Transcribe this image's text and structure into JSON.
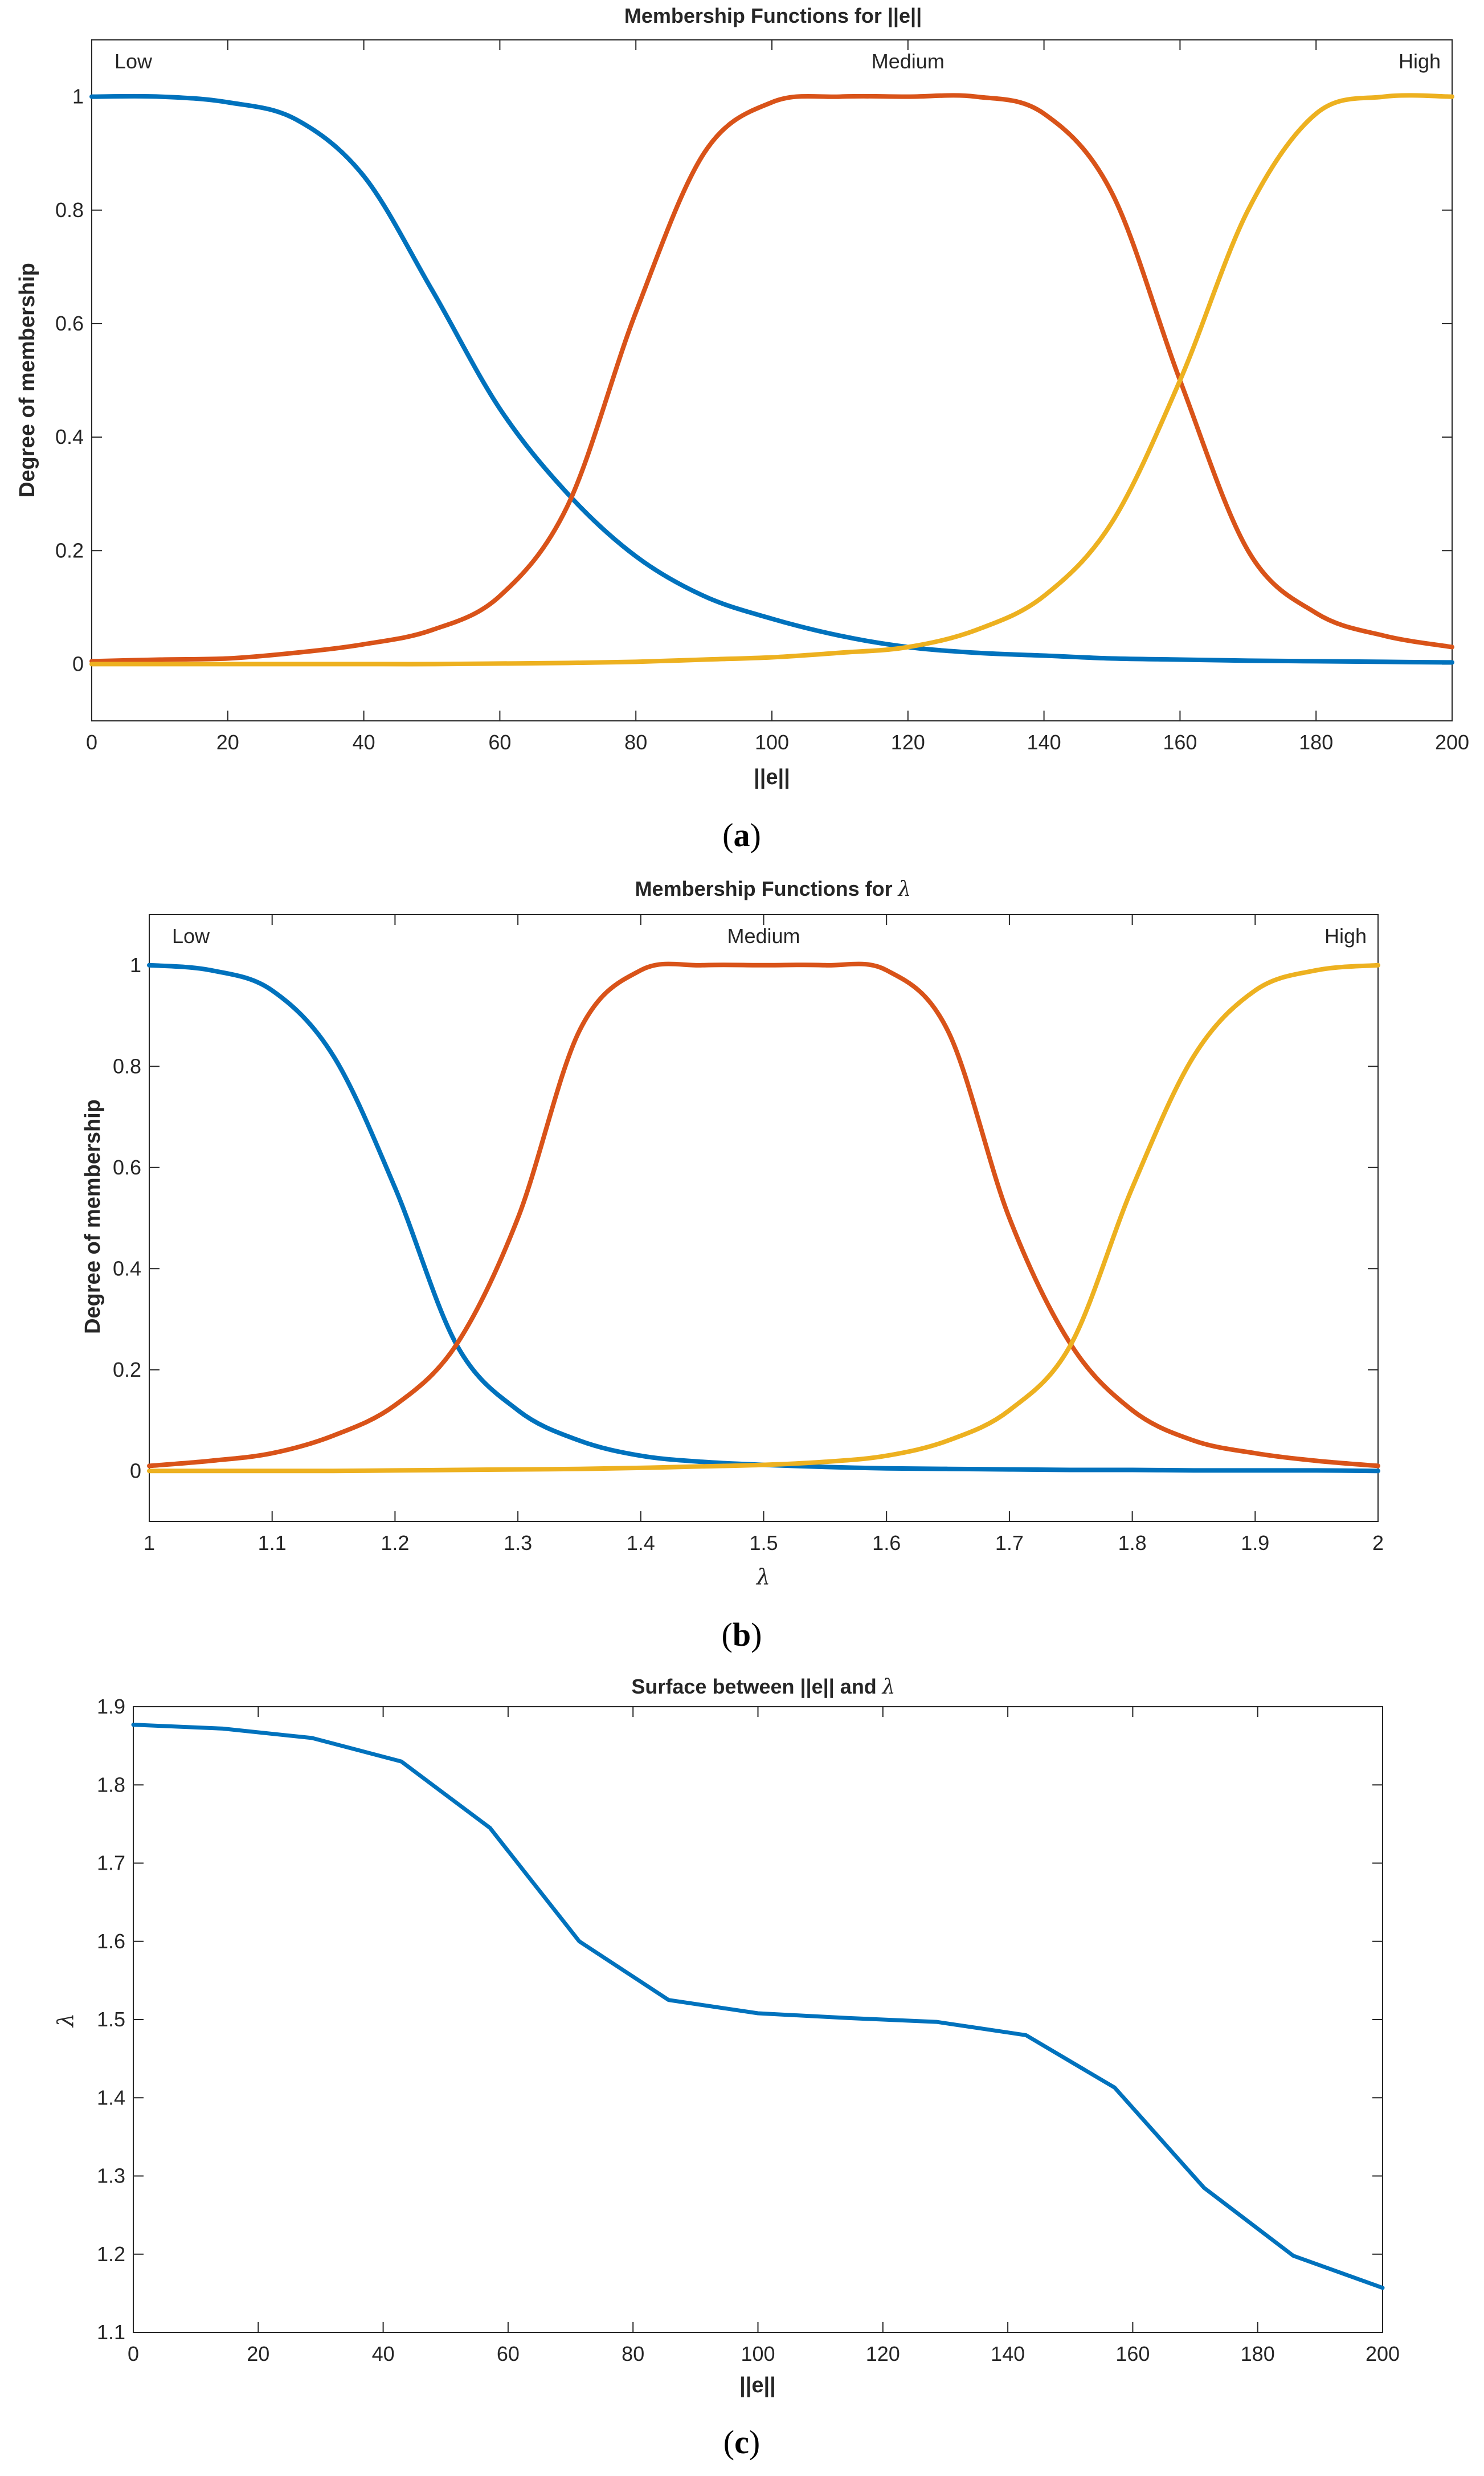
{
  "chart_data": [
    {
      "type": "line",
      "panel": "a",
      "title": "Membership Functions for ||e||",
      "xlabel": "||e||",
      "ylabel": "Degree of membership",
      "xlim": [
        0,
        200
      ],
      "ylim": [
        -0.1,
        1.1
      ],
      "xticks": [
        "0",
        "20",
        "40",
        "60",
        "80",
        "100",
        "120",
        "140",
        "160",
        "180",
        "200"
      ],
      "yticks": [
        "0",
        "0.2",
        "0.4",
        "0.6",
        "0.8",
        "1"
      ],
      "grid": false,
      "mf_labels": [
        {
          "text": "Low",
          "x": 0
        },
        {
          "text": "Medium",
          "x": 120
        },
        {
          "text": "High",
          "x": 200
        }
      ],
      "x": [
        0,
        10,
        20,
        30,
        40,
        50,
        60,
        70,
        80,
        90,
        100,
        110,
        120,
        130,
        140,
        150,
        160,
        170,
        180,
        190,
        200
      ],
      "series": [
        {
          "color": "#0072BD",
          "values": [
            1.0,
            1.0,
            0.99,
            0.96,
            0.86,
            0.66,
            0.45,
            0.3,
            0.19,
            0.12,
            0.08,
            0.05,
            0.03,
            0.02,
            0.015,
            0.01,
            0.008,
            0.006,
            0.005,
            0.004,
            0.003
          ]
        },
        {
          "color": "#D95319",
          "values": [
            0.005,
            0.008,
            0.01,
            0.02,
            0.035,
            0.06,
            0.12,
            0.28,
            0.62,
            0.9,
            0.99,
            1.0,
            1.0,
            1.0,
            0.97,
            0.83,
            0.5,
            0.2,
            0.09,
            0.05,
            0.03
          ]
        },
        {
          "color": "#EDB120",
          "values": [
            0.0,
            0.0,
            0.0,
            0.0,
            0.0,
            0.0,
            0.001,
            0.002,
            0.004,
            0.008,
            0.012,
            0.02,
            0.03,
            0.06,
            0.12,
            0.25,
            0.5,
            0.8,
            0.97,
            1.0,
            1.0
          ]
        }
      ]
    },
    {
      "type": "line",
      "panel": "b",
      "title": "Membership Functions for λ",
      "xlabel": "λ",
      "ylabel": "Degree of membership",
      "xlim": [
        1,
        2
      ],
      "ylim": [
        -0.1,
        1.1
      ],
      "xticks": [
        "1",
        "1.1",
        "1.2",
        "1.3",
        "1.4",
        "1.5",
        "1.6",
        "1.7",
        "1.8",
        "1.9",
        "2"
      ],
      "yticks": [
        "0",
        "0.2",
        "0.4",
        "0.6",
        "0.8",
        "1"
      ],
      "grid": false,
      "mf_labels": [
        {
          "text": "Low",
          "x": 1.0
        },
        {
          "text": "Medium",
          "x": 1.5
        },
        {
          "text": "High",
          "x": 2.0
        }
      ],
      "x": [
        1.0,
        1.05,
        1.1,
        1.15,
        1.2,
        1.25,
        1.3,
        1.35,
        1.4,
        1.45,
        1.5,
        1.55,
        1.6,
        1.65,
        1.7,
        1.75,
        1.8,
        1.85,
        1.9,
        1.95,
        2.0
      ],
      "series": [
        {
          "color": "#0072BD",
          "values": [
            1.0,
            0.99,
            0.95,
            0.82,
            0.56,
            0.25,
            0.12,
            0.06,
            0.03,
            0.018,
            0.012,
            0.008,
            0.005,
            0.004,
            0.003,
            0.002,
            0.002,
            0.001,
            0.001,
            0.001,
            0.0
          ]
        },
        {
          "color": "#D95319",
          "values": [
            0.01,
            0.02,
            0.035,
            0.07,
            0.13,
            0.25,
            0.5,
            0.87,
            0.99,
            1.0,
            1.0,
            1.0,
            0.99,
            0.87,
            0.5,
            0.25,
            0.12,
            0.06,
            0.035,
            0.02,
            0.01
          ]
        },
        {
          "color": "#EDB120",
          "values": [
            0.0,
            0.0,
            0.0,
            0.0,
            0.001,
            0.002,
            0.003,
            0.004,
            0.006,
            0.009,
            0.012,
            0.018,
            0.03,
            0.06,
            0.12,
            0.25,
            0.56,
            0.82,
            0.95,
            0.99,
            1.0
          ]
        }
      ]
    },
    {
      "type": "line",
      "panel": "c",
      "title": "Surface between ||e|| and λ",
      "xlabel": "||e||",
      "ylabel": "λ",
      "xlim": [
        0,
        200
      ],
      "ylim": [
        1.1,
        1.9
      ],
      "xticks": [
        "0",
        "20",
        "40",
        "60",
        "80",
        "100",
        "120",
        "140",
        "160",
        "180",
        "200"
      ],
      "yticks": [
        "1.1",
        "1.2",
        "1.3",
        "1.4",
        "1.5",
        "1.6",
        "1.7",
        "1.8",
        "1.9"
      ],
      "grid": false,
      "x": [
        0,
        14.3,
        28.6,
        42.9,
        57.1,
        71.4,
        85.7,
        100,
        114.3,
        128.6,
        142.9,
        157.1,
        171.4,
        185.7,
        200
      ],
      "series": [
        {
          "color": "#0072BD",
          "values": [
            1.877,
            1.872,
            1.86,
            1.83,
            1.745,
            1.6,
            1.525,
            1.508,
            1.502,
            1.497,
            1.48,
            1.413,
            1.285,
            1.198,
            1.157
          ]
        }
      ]
    }
  ],
  "captions": {
    "a": "(a)",
    "b": "(b)",
    "c": "(c)"
  }
}
